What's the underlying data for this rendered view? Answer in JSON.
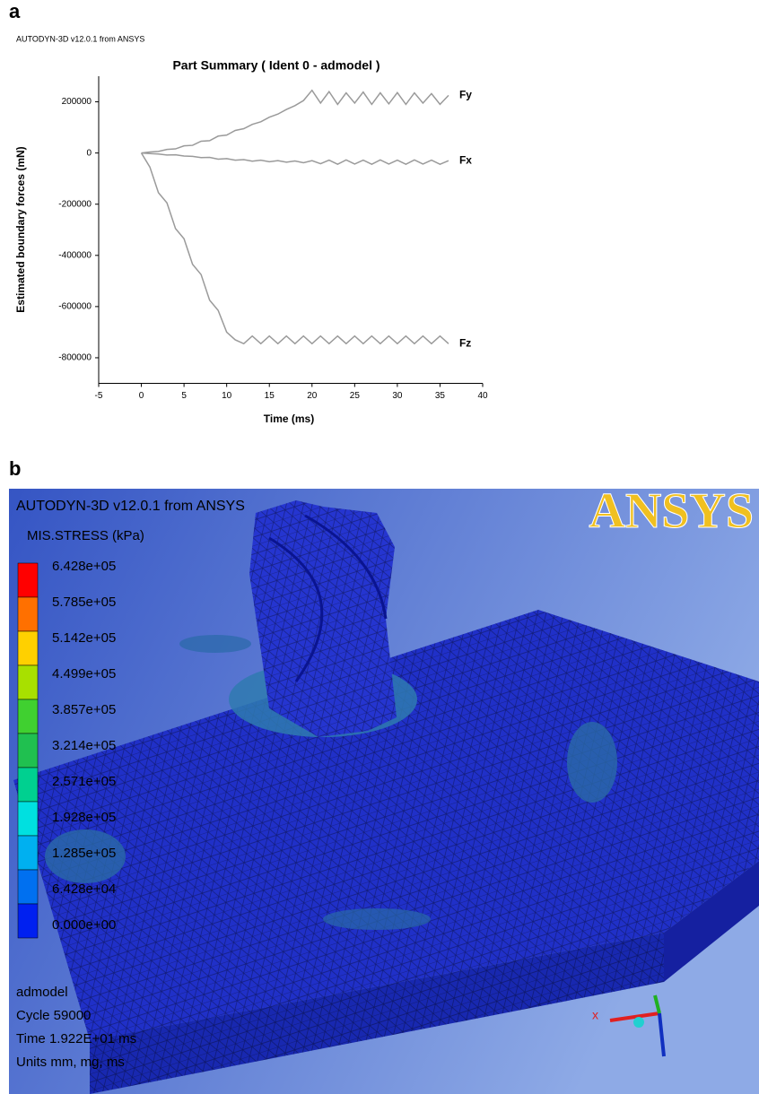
{
  "chart_data": {
    "type": "line",
    "subtitle": "AUTODYN-3D v12.0.1 from ANSYS",
    "title": "Part Summary ( Ident 0 - admodel )",
    "x_label": "Time (ms)",
    "y_label": "Estimated boundary forces (mN)",
    "x": [
      0,
      1,
      2,
      3,
      4,
      5,
      6,
      7,
      8,
      9,
      10,
      11,
      12,
      13,
      14,
      15,
      16,
      17,
      18,
      19,
      20,
      21,
      22,
      23,
      24,
      25,
      26,
      27,
      28,
      29,
      30,
      31,
      32,
      33,
      34,
      35,
      36
    ],
    "series": [
      {
        "name": "Fy",
        "color": "#9a9a9a",
        "values": [
          0,
          4000,
          6000,
          14000,
          16000,
          28000,
          30000,
          46000,
          48000,
          66000,
          70000,
          88000,
          95000,
          112000,
          122000,
          140000,
          152000,
          170000,
          185000,
          205000,
          245000,
          195000,
          240000,
          190000,
          235000,
          195000,
          238000,
          190000,
          235000,
          192000,
          236000,
          190000,
          235000,
          195000,
          232000,
          190000,
          225000
        ]
      },
      {
        "name": "Fx",
        "color": "#9a9a9a",
        "values": [
          0,
          -2000,
          -4000,
          -8000,
          -7000,
          -12000,
          -13000,
          -18000,
          -17000,
          -24000,
          -22000,
          -28000,
          -26000,
          -32000,
          -28000,
          -34000,
          -30000,
          -36000,
          -31000,
          -38000,
          -30000,
          -42000,
          -28000,
          -44000,
          -27000,
          -43000,
          -28000,
          -44000,
          -27000,
          -43000,
          -28000,
          -44000,
          -27000,
          -43000,
          -28000,
          -44000,
          -30000
        ]
      },
      {
        "name": "Fz",
        "color": "#9a9a9a",
        "values": [
          0,
          -55000,
          -155000,
          -195000,
          -295000,
          -335000,
          -435000,
          -475000,
          -575000,
          -615000,
          -700000,
          -730000,
          -745000,
          -715000,
          -745000,
          -715000,
          -745000,
          -715000,
          -745000,
          -715000,
          -745000,
          -715000,
          -745000,
          -715000,
          -745000,
          -715000,
          -745000,
          -715000,
          -745000,
          -715000,
          -745000,
          -715000,
          -745000,
          -715000,
          -745000,
          -715000,
          -745000
        ]
      }
    ],
    "xlim": [
      -5,
      40
    ],
    "xticks": [
      -5,
      0,
      5,
      10,
      15,
      20,
      25,
      30,
      35,
      40
    ],
    "ylim": [
      -900000,
      300000
    ],
    "yticks": [
      200000,
      0,
      -200000,
      -400000,
      -600000,
      -800000
    ],
    "grid": false
  },
  "panel_labels": [
    "a",
    "b"
  ],
  "render": {
    "header": "AUTODYN-3D v12.0.1 from ANSYS",
    "variable": "MIS.STRESS (kPa)",
    "logo": "ANSYS",
    "legend_labels": [
      "6.428e+05",
      "5.785e+05",
      "5.142e+05",
      "4.499e+05",
      "3.857e+05",
      "3.214e+05",
      "2.571e+05",
      "1.928e+05",
      "1.285e+05",
      "6.428e+04",
      "0.000e+00"
    ],
    "legend_colors": [
      "#ff0000",
      "#ff7000",
      "#ffd000",
      "#a8e000",
      "#40d030",
      "#20c050",
      "#00d090",
      "#00e0e0",
      "#00b0f0",
      "#0070f0",
      "#0020f0"
    ],
    "footer": [
      "admodel",
      "Cycle 59000",
      "Time 1.922E+01 ms",
      "Units mm, mg, ms"
    ],
    "axis_label": "x"
  }
}
